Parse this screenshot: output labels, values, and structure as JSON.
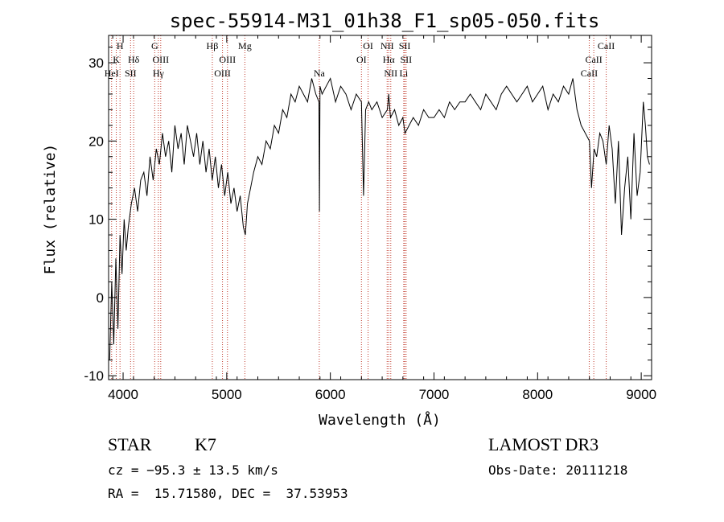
{
  "chart_data": {
    "type": "line",
    "title": "spec-55914-M31_01h38_F1_sp05-050.fits",
    "xlabel": "Wavelength (Å)",
    "ylabel": "Flux (relative)",
    "xlim": [
      3860,
      9100
    ],
    "ylim": [
      -10.5,
      33.5
    ],
    "xticks": [
      4000,
      5000,
      6000,
      7000,
      8000,
      9000
    ],
    "yticks": [
      -10,
      0,
      10,
      20,
      30
    ],
    "series": [
      {
        "name": "flux",
        "x": [
          3870,
          3890,
          3910,
          3930,
          3950,
          3970,
          3990,
          4010,
          4030,
          4050,
          4080,
          4110,
          4140,
          4170,
          4200,
          4230,
          4260,
          4290,
          4320,
          4350,
          4380,
          4410,
          4440,
          4470,
          4500,
          4530,
          4560,
          4590,
          4620,
          4650,
          4680,
          4710,
          4740,
          4770,
          4800,
          4830,
          4860,
          4890,
          4920,
          4950,
          4980,
          5010,
          5040,
          5070,
          5100,
          5130,
          5160,
          5180,
          5200,
          5230,
          5260,
          5300,
          5340,
          5380,
          5420,
          5460,
          5500,
          5540,
          5580,
          5620,
          5660,
          5700,
          5740,
          5780,
          5820,
          5860,
          5890,
          5895,
          5900,
          5920,
          5960,
          6000,
          6050,
          6100,
          6150,
          6200,
          6250,
          6300,
          6320,
          6340,
          6370,
          6400,
          6450,
          6500,
          6550,
          6563,
          6580,
          6620,
          6660,
          6700,
          6720,
          6760,
          6800,
          6850,
          6900,
          6950,
          7000,
          7050,
          7100,
          7150,
          7200,
          7250,
          7300,
          7350,
          7400,
          7450,
          7500,
          7550,
          7600,
          7650,
          7700,
          7750,
          7800,
          7850,
          7900,
          7950,
          8000,
          8050,
          8100,
          8150,
          8200,
          8250,
          8300,
          8340,
          8380,
          8420,
          8460,
          8500,
          8520,
          8545,
          8570,
          8600,
          8630,
          8662,
          8690,
          8720,
          8750,
          8780,
          8810,
          8840,
          8870,
          8900,
          8930,
          8960,
          8990,
          9020,
          9040,
          9060,
          9080
        ],
        "y": [
          -8,
          2,
          -6,
          5,
          -4,
          8,
          3,
          10,
          6,
          9,
          12,
          14,
          11,
          15,
          16,
          13,
          18,
          15,
          19,
          17,
          21,
          18,
          20,
          16,
          22,
          19,
          21,
          17,
          22,
          20,
          18,
          21,
          17,
          20,
          16,
          19,
          15,
          18,
          14,
          17,
          13,
          16,
          12,
          14,
          11,
          13,
          9,
          8,
          12,
          14,
          16,
          18,
          17,
          20,
          19,
          22,
          21,
          24,
          23,
          26,
          25,
          27,
          26,
          25,
          28,
          26,
          25,
          11,
          27,
          26,
          27,
          28,
          25,
          27,
          26,
          24,
          26,
          25,
          13,
          24,
          25,
          24,
          25,
          23,
          24,
          26,
          23,
          24,
          22,
          23,
          21,
          22,
          23,
          22,
          24,
          23,
          23,
          24,
          23,
          25,
          24,
          25,
          25,
          26,
          25,
          24,
          26,
          25,
          24,
          26,
          27,
          26,
          25,
          26,
          27,
          25,
          26,
          27,
          24,
          26,
          25,
          27,
          26,
          28,
          24,
          22,
          21,
          20,
          14,
          19,
          18,
          21,
          20,
          17,
          22,
          19,
          12,
          20,
          8,
          14,
          18,
          10,
          21,
          13,
          16,
          25,
          22,
          18,
          17
        ]
      }
    ],
    "lines": [
      {
        "label": "H",
        "wavelength": 3970,
        "row": 0
      },
      {
        "label": "K",
        "wavelength": 3934,
        "row": 1
      },
      {
        "label": "HeI",
        "wavelength": 3889,
        "row": 2
      },
      {
        "label": "SII",
        "wavelength": 4072,
        "row": 2
      },
      {
        "label": "Hδ",
        "wavelength": 4102,
        "row": 1
      },
      {
        "label": "G",
        "wavelength": 4305,
        "row": 0
      },
      {
        "label": "OIII",
        "wavelength": 4363,
        "row": 1
      },
      {
        "label": "Hγ",
        "wavelength": 4340,
        "row": 2
      },
      {
        "label": "Hβ",
        "wavelength": 4861,
        "row": 0
      },
      {
        "label": "OIII",
        "wavelength": 5007,
        "row": 1
      },
      {
        "label": "OIII",
        "wavelength": 4959,
        "row": 2
      },
      {
        "label": "Mg",
        "wavelength": 5175,
        "row": 0
      },
      {
        "label": "Na",
        "wavelength": 5893,
        "row": 2
      },
      {
        "label": "OI",
        "wavelength": 6364,
        "row": 0
      },
      {
        "label": "OI",
        "wavelength": 6300,
        "row": 1
      },
      {
        "label": "NII",
        "wavelength": 6548,
        "row": 0
      },
      {
        "label": "SII",
        "wavelength": 6717,
        "row": 0
      },
      {
        "label": "Hα",
        "wavelength": 6563,
        "row": 1
      },
      {
        "label": "SII",
        "wavelength": 6731,
        "row": 1
      },
      {
        "label": "NII",
        "wavelength": 6583,
        "row": 2
      },
      {
        "label": "Li",
        "wavelength": 6708,
        "row": 2
      },
      {
        "label": "CaII",
        "wavelength": 8662,
        "row": 0
      },
      {
        "label": "CaII",
        "wavelength": 8542,
        "row": 1
      },
      {
        "label": "CaII",
        "wavelength": 8498,
        "row": 2
      }
    ]
  },
  "info": {
    "object_type": "STAR",
    "subclass": "K7",
    "survey": "LAMOST DR3",
    "cz": "cz = −95.3 ± 13.5 km/s",
    "obs_date": "Obs-Date: 20111218",
    "coords": "RA =  15.71580, DEC =  37.53953"
  },
  "colors": {
    "line_marker": "#c0392b",
    "spectrum": "#000000"
  }
}
